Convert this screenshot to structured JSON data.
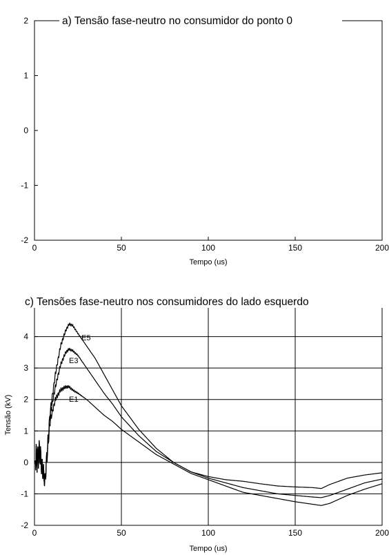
{
  "chart_data": [
    {
      "type": "line",
      "title": "a) Tensão fase-neutro no consumidor do ponto 0",
      "xlabel": "Tempo (us)",
      "ylabel": "",
      "xlim": [
        0,
        200
      ],
      "ylim": [
        -2,
        2
      ],
      "xticks": [
        "0",
        "50",
        "100",
        "150",
        "200"
      ],
      "yticks": [
        "2",
        "1",
        "0",
        "-1",
        "-2"
      ],
      "grid": false,
      "series": []
    },
    {
      "type": "line",
      "title": "c) Tensões fase-neutro nos consumidores do lado esquerdo",
      "xlabel": "Tempo (us)",
      "ylabel": "Tensão (kV)",
      "xlim": [
        0,
        200
      ],
      "ylim": [
        -2,
        5
      ],
      "xticks": [
        "0",
        "50",
        "100",
        "150",
        "200"
      ],
      "yticks": [
        "5",
        "4",
        "3",
        "2",
        "1",
        "0",
        "-1",
        "-2"
      ],
      "grid": true,
      "series": [
        {
          "name": "E5",
          "x": [
            0,
            3,
            6,
            9,
            12,
            15,
            18,
            20,
            22,
            25,
            30,
            35,
            40,
            45,
            50,
            60,
            70,
            80,
            90,
            100,
            110,
            120,
            130,
            140,
            150,
            160,
            165,
            170,
            180,
            190,
            200
          ],
          "values": [
            0,
            0.3,
            -0.6,
            1.6,
            2.8,
            3.7,
            4.2,
            4.4,
            4.35,
            4.1,
            3.7,
            3.3,
            2.8,
            2.3,
            1.8,
            1.05,
            0.45,
            0.0,
            -0.3,
            -0.45,
            -0.55,
            -0.6,
            -0.68,
            -0.75,
            -0.78,
            -0.8,
            -0.83,
            -0.7,
            -0.5,
            -0.4,
            -0.33
          ]
        },
        {
          "name": "E3",
          "x": [
            0,
            3,
            6,
            9,
            12,
            15,
            18,
            20,
            22,
            25,
            30,
            35,
            40,
            45,
            50,
            60,
            70,
            80,
            90,
            100,
            110,
            120,
            130,
            140,
            150,
            160,
            165,
            170,
            180,
            190,
            200
          ],
          "values": [
            0,
            0.3,
            -0.6,
            1.5,
            2.4,
            3.1,
            3.5,
            3.6,
            3.55,
            3.4,
            3.0,
            2.6,
            2.2,
            1.85,
            1.45,
            0.85,
            0.35,
            0.0,
            -0.3,
            -0.5,
            -0.65,
            -0.8,
            -0.9,
            -1.0,
            -1.05,
            -1.1,
            -1.12,
            -1.05,
            -0.85,
            -0.65,
            -0.53
          ]
        },
        {
          "name": "E1",
          "x": [
            0,
            3,
            6,
            9,
            12,
            15,
            18,
            20,
            22,
            25,
            30,
            35,
            40,
            45,
            50,
            60,
            70,
            80,
            90,
            100,
            110,
            120,
            130,
            140,
            150,
            160,
            165,
            170,
            180,
            190,
            200
          ],
          "values": [
            0,
            0.3,
            -0.6,
            1.3,
            2.0,
            2.3,
            2.4,
            2.4,
            2.3,
            2.2,
            2.0,
            1.75,
            1.5,
            1.3,
            1.05,
            0.65,
            0.25,
            -0.05,
            -0.35,
            -0.55,
            -0.75,
            -0.95,
            -1.05,
            -1.15,
            -1.25,
            -1.33,
            -1.37,
            -1.3,
            -1.05,
            -0.85,
            -0.68
          ]
        }
      ],
      "annotations": [
        "E5",
        "E3",
        "E1"
      ]
    }
  ]
}
